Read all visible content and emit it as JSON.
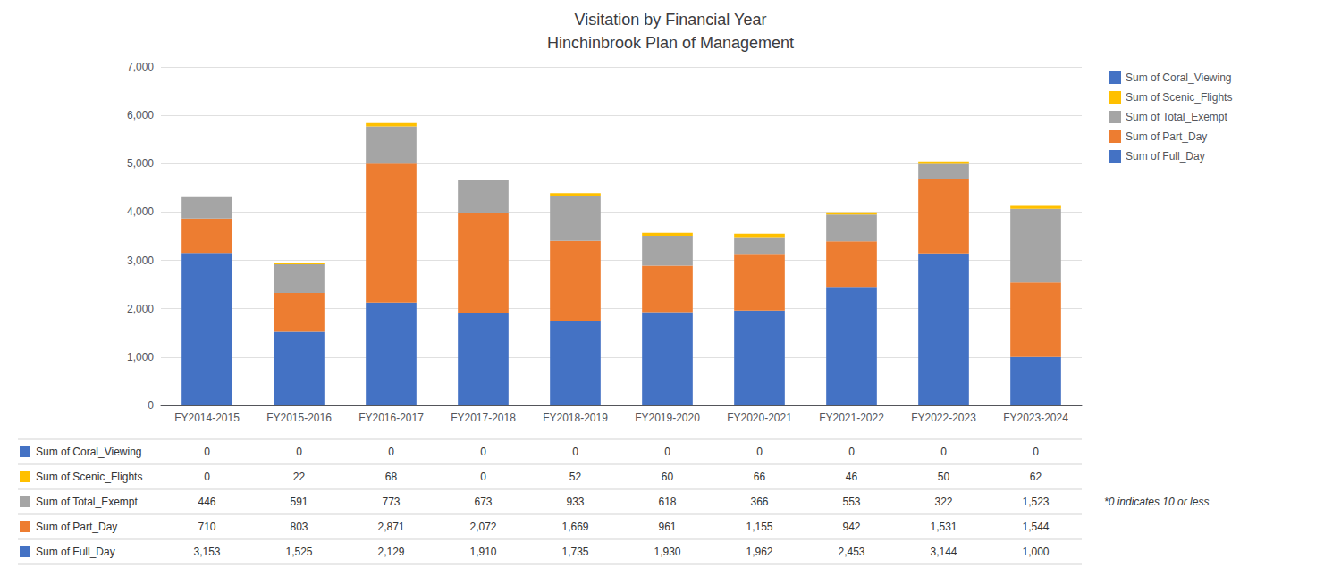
{
  "chart_data": {
    "type": "bar",
    "title": "Visitation by Financial Year",
    "subtitle": "Hinchinbrook Plan of Management",
    "categories": [
      "FY2014-2015",
      "FY2015-2016",
      "FY2016-2017",
      "FY2017-2018",
      "FY2018-2019",
      "FY2019-2020",
      "FY2020-2021",
      "FY2021-2022",
      "FY2022-2023",
      "FY2023-2024"
    ],
    "series": [
      {
        "name": "Sum of Full_Day",
        "color": "#4472C4",
        "values": [
          3153,
          1525,
          2129,
          1910,
          1735,
          1930,
          1962,
          2453,
          3144,
          1000
        ],
        "value_labels": [
          "3,153",
          "1,525",
          "2,129",
          "1,910",
          "1,735",
          "1,930",
          "1,962",
          "2,453",
          "3,144",
          "1,000"
        ]
      },
      {
        "name": "Sum of Part_Day",
        "color": "#ED7D31",
        "values": [
          710,
          803,
          2871,
          2072,
          1669,
          961,
          1155,
          942,
          1531,
          1544
        ],
        "value_labels": [
          "710",
          "803",
          "2,871",
          "2,072",
          "1,669",
          "961",
          "1,155",
          "942",
          "1,531",
          "1,544"
        ]
      },
      {
        "name": "Sum of Total_Exempt",
        "color": "#A5A5A5",
        "values": [
          446,
          591,
          773,
          673,
          933,
          618,
          366,
          553,
          322,
          1523
        ],
        "value_labels": [
          "446",
          "591",
          "773",
          "673",
          "933",
          "618",
          "366",
          "553",
          "322",
          "1,523"
        ]
      },
      {
        "name": "Sum of Scenic_Flights",
        "color": "#FFC000",
        "values": [
          0,
          22,
          68,
          0,
          52,
          60,
          66,
          46,
          50,
          62
        ],
        "value_labels": [
          "0",
          "22",
          "68",
          "0",
          "52",
          "60",
          "66",
          "46",
          "50",
          "62"
        ]
      },
      {
        "name": "Sum of Coral_Viewing",
        "color": "#4472C4",
        "values": [
          0,
          0,
          0,
          0,
          0,
          0,
          0,
          0,
          0,
          0
        ],
        "value_labels": [
          "0",
          "0",
          "0",
          "0",
          "0",
          "0",
          "0",
          "0",
          "0",
          "0"
        ]
      }
    ],
    "ylim": [
      0,
      7000
    ],
    "yticks": [
      0,
      {
        "value": 1000,
        "label": "1,000"
      },
      {
        "value": 2000,
        "label": "2,000"
      },
      {
        "value": 3000,
        "label": "3,000"
      },
      {
        "value": 4000,
        "label": "4,000"
      },
      {
        "value": 5000,
        "label": "5,000"
      },
      {
        "value": 6000,
        "label": "6,000"
      },
      {
        "value": 7000,
        "label": "7,000"
      }
    ],
    "stacked": true,
    "grid": true,
    "legend": "right",
    "annotations": [
      "*0 indicates 10 or less"
    ]
  }
}
